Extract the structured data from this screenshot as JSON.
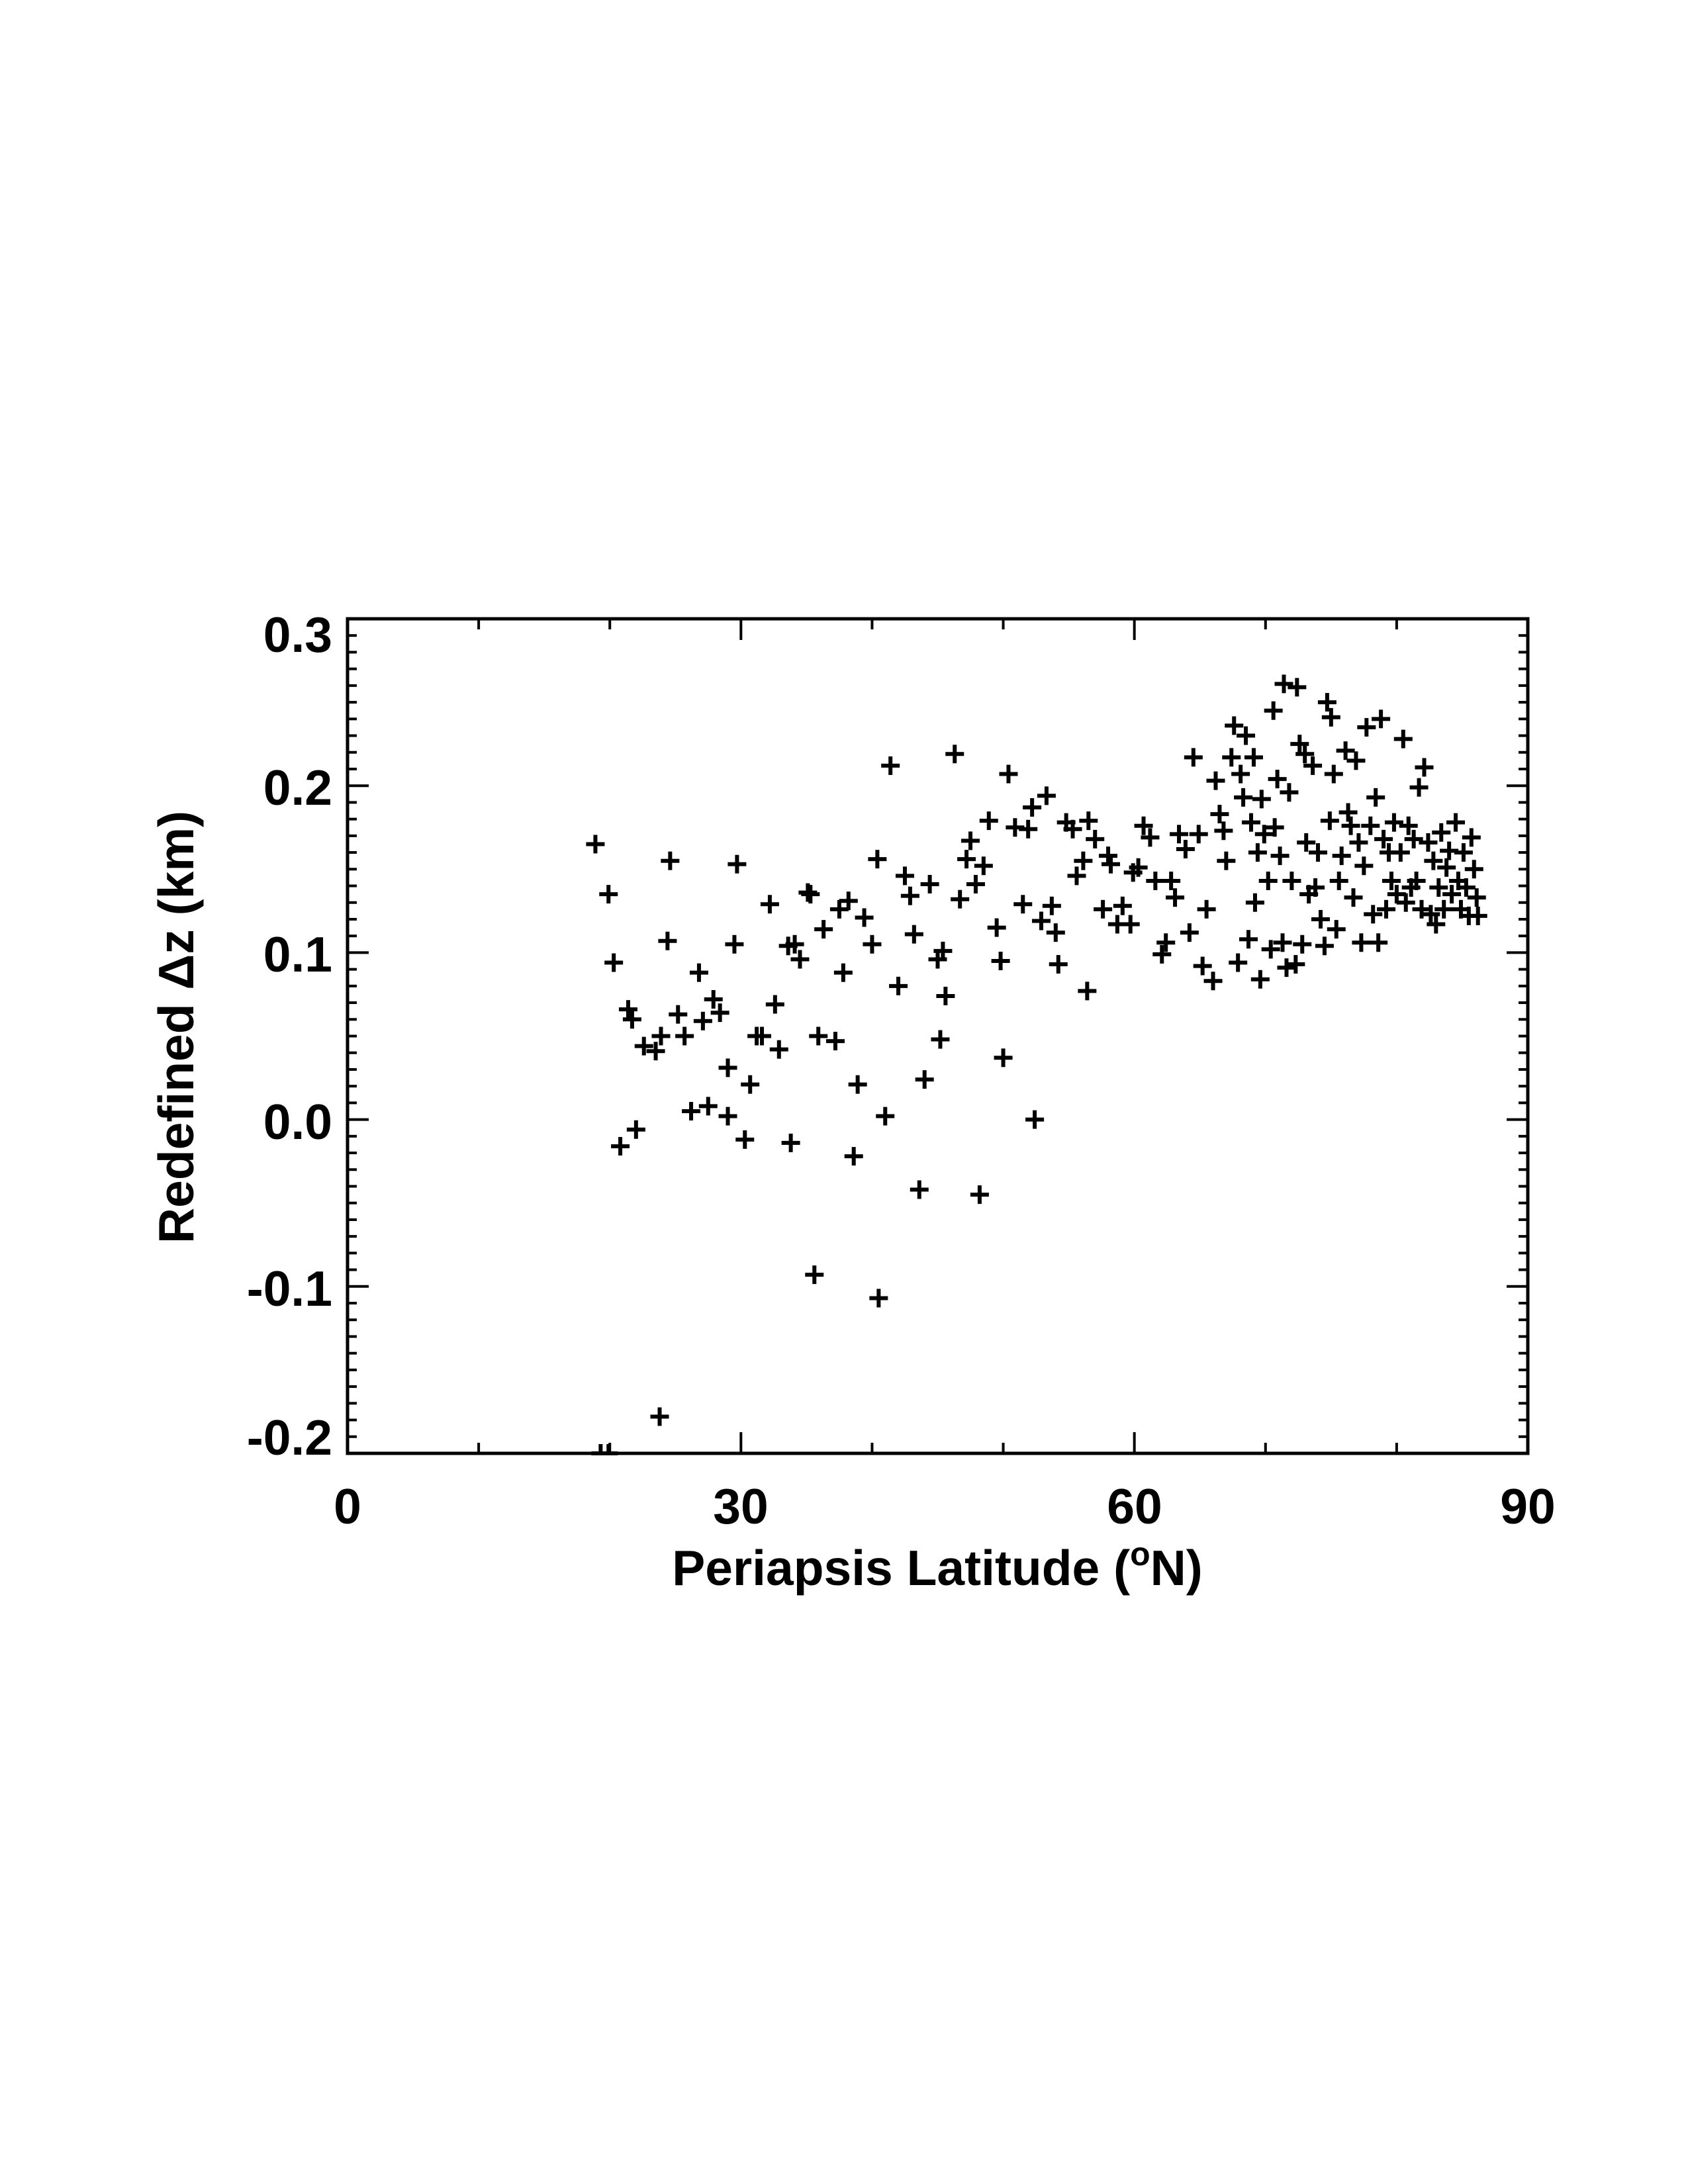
{
  "chart_data": {
    "type": "scatter",
    "title": "",
    "xlabel": "Periapsis Latitude (",
    "xlabel_sup": "o",
    "xlabel_end": "N)",
    "ylabel": "Redefined Δz (km)",
    "xlim": [
      0,
      90
    ],
    "ylim": [
      -0.2,
      0.3
    ],
    "x_ticks": [
      0,
      30,
      60,
      90
    ],
    "x_tick_labels": [
      "0",
      "30",
      "60",
      "90"
    ],
    "y_ticks": [
      -0.2,
      -0.1,
      0.0,
      0.1,
      0.2,
      0.3
    ],
    "y_tick_labels": [
      "-0.2",
      "-0.1",
      "0.0",
      "0.1",
      "0.2",
      "0.3"
    ],
    "grid": false,
    "marker": "plus",
    "color": "#000000",
    "points": [
      [
        18.9,
        0.165
      ],
      [
        19.9,
        0.135
      ],
      [
        20.3,
        0.094
      ],
      [
        20.8,
        -0.016
      ],
      [
        21.4,
        0.066
      ],
      [
        21.7,
        0.06
      ],
      [
        22.0,
        -0.006
      ],
      [
        22.6,
        0.044
      ],
      [
        23.5,
        0.041
      ],
      [
        23.8,
        -0.178
      ],
      [
        23.9,
        0.05
      ],
      [
        24.4,
        0.107
      ],
      [
        24.6,
        0.155
      ],
      [
        25.2,
        0.063
      ],
      [
        25.7,
        0.05
      ],
      [
        26.2,
        0.005
      ],
      [
        26.8,
        0.088
      ],
      [
        27.1,
        0.059
      ],
      [
        27.5,
        0.008
      ],
      [
        27.9,
        0.072
      ],
      [
        28.4,
        0.064
      ],
      [
        29.0,
        0.031
      ],
      [
        29.0,
        0.002
      ],
      [
        29.5,
        0.105
      ],
      [
        29.7,
        0.153
      ],
      [
        30.3,
        -0.012
      ],
      [
        30.7,
        0.021
      ],
      [
        31.2,
        0.05
      ],
      [
        31.6,
        0.05
      ],
      [
        32.2,
        0.129
      ],
      [
        32.6,
        0.069
      ],
      [
        32.9,
        0.042
      ],
      [
        33.6,
        0.104
      ],
      [
        33.8,
        -0.014
      ],
      [
        34.1,
        0.105
      ],
      [
        34.5,
        0.096
      ],
      [
        35.1,
        0.136
      ],
      [
        35.3,
        0.135
      ],
      [
        35.6,
        -0.093
      ],
      [
        35.9,
        0.05
      ],
      [
        36.3,
        0.114
      ],
      [
        37.2,
        0.047
      ],
      [
        37.5,
        0.126
      ],
      [
        37.8,
        0.088
      ],
      [
        38.2,
        0.131
      ],
      [
        38.6,
        -0.022
      ],
      [
        38.9,
        0.021
      ],
      [
        39.4,
        0.121
      ],
      [
        40.0,
        0.105
      ],
      [
        40.4,
        0.156
      ],
      [
        40.5,
        -0.107
      ],
      [
        41.0,
        0.002
      ],
      [
        41.4,
        0.212
      ],
      [
        42.0,
        0.08
      ],
      [
        42.5,
        0.146
      ],
      [
        42.9,
        0.134
      ],
      [
        43.2,
        0.111
      ],
      [
        43.6,
        -0.042
      ],
      [
        44.0,
        0.024
      ],
      [
        44.4,
        0.141
      ],
      [
        45.0,
        0.096
      ],
      [
        45.2,
        0.048
      ],
      [
        45.4,
        0.101
      ],
      [
        45.6,
        0.074
      ],
      [
        46.3,
        0.219
      ],
      [
        46.7,
        0.132
      ],
      [
        47.2,
        0.156
      ],
      [
        47.5,
        0.167
      ],
      [
        47.9,
        0.141
      ],
      [
        48.2,
        -0.045
      ],
      [
        48.5,
        0.152
      ],
      [
        48.9,
        0.179
      ],
      [
        49.5,
        0.115
      ],
      [
        49.8,
        0.095
      ],
      [
        50.0,
        0.037
      ],
      [
        50.4,
        0.207
      ],
      [
        50.9,
        0.175
      ],
      [
        51.5,
        0.129
      ],
      [
        51.9,
        0.174
      ],
      [
        52.2,
        0.187
      ],
      [
        52.4,
        0.0
      ],
      [
        52.9,
        0.119
      ],
      [
        53.3,
        0.194
      ],
      [
        53.7,
        0.128
      ],
      [
        54.0,
        0.112
      ],
      [
        54.2,
        0.093
      ],
      [
        54.8,
        0.178
      ],
      [
        55.3,
        0.174
      ],
      [
        55.6,
        0.146
      ],
      [
        56.1,
        0.155
      ],
      [
        56.4,
        0.077
      ],
      [
        56.5,
        0.179
      ],
      [
        57.0,
        0.168
      ],
      [
        57.6,
        0.126
      ],
      [
        58.0,
        0.158
      ],
      [
        58.2,
        0.153
      ],
      [
        58.7,
        0.117
      ],
      [
        59.1,
        0.128
      ],
      [
        59.7,
        0.117
      ],
      [
        59.9,
        0.148
      ],
      [
        60.3,
        0.151
      ],
      [
        60.7,
        0.176
      ],
      [
        61.2,
        0.169
      ],
      [
        61.6,
        0.143
      ],
      [
        62.1,
        0.099
      ],
      [
        62.4,
        0.106
      ],
      [
        62.8,
        0.143
      ],
      [
        63.1,
        0.133
      ],
      [
        63.4,
        0.171
      ],
      [
        63.9,
        0.162
      ],
      [
        64.2,
        0.112
      ],
      [
        64.5,
        0.217
      ],
      [
        64.9,
        0.171
      ],
      [
        65.2,
        0.092
      ],
      [
        65.5,
        0.126
      ],
      [
        66.0,
        0.083
      ],
      [
        66.2,
        0.203
      ],
      [
        66.5,
        0.183
      ],
      [
        66.8,
        0.173
      ],
      [
        67.0,
        0.155
      ],
      [
        67.4,
        0.217
      ],
      [
        67.6,
        0.236
      ],
      [
        67.9,
        0.094
      ],
      [
        68.1,
        0.207
      ],
      [
        68.3,
        0.193
      ],
      [
        68.5,
        0.23
      ],
      [
        68.7,
        0.108
      ],
      [
        68.9,
        0.178
      ],
      [
        69.1,
        0.217
      ],
      [
        69.2,
        0.13
      ],
      [
        69.4,
        0.16
      ],
      [
        69.6,
        0.084
      ],
      [
        69.7,
        0.192
      ],
      [
        69.9,
        0.171
      ],
      [
        70.2,
        0.143
      ],
      [
        70.4,
        0.102
      ],
      [
        70.6,
        0.245
      ],
      [
        70.7,
        0.175
      ],
      [
        70.9,
        0.204
      ],
      [
        71.1,
        0.158
      ],
      [
        71.3,
        0.106
      ],
      [
        71.4,
        0.261
      ],
      [
        71.6,
        0.091
      ],
      [
        71.8,
        0.196
      ],
      [
        72.0,
        0.143
      ],
      [
        72.3,
        0.093
      ],
      [
        72.4,
        0.259
      ],
      [
        72.6,
        0.225
      ],
      [
        72.8,
        0.105
      ],
      [
        73.0,
        0.219
      ],
      [
        73.1,
        0.166
      ],
      [
        73.3,
        0.135
      ],
      [
        73.6,
        0.212
      ],
      [
        73.8,
        0.139
      ],
      [
        74.0,
        0.16
      ],
      [
        74.2,
        0.12
      ],
      [
        74.5,
        0.104
      ],
      [
        74.7,
        0.25
      ],
      [
        74.9,
        0.179
      ],
      [
        75.0,
        0.241
      ],
      [
        75.2,
        0.207
      ],
      [
        75.4,
        0.114
      ],
      [
        75.6,
        0.143
      ],
      [
        75.8,
        0.158
      ],
      [
        76.1,
        0.221
      ],
      [
        76.3,
        0.184
      ],
      [
        76.5,
        0.176
      ],
      [
        76.7,
        0.133
      ],
      [
        76.9,
        0.215
      ],
      [
        77.1,
        0.166
      ],
      [
        77.3,
        0.106
      ],
      [
        77.5,
        0.152
      ],
      [
        77.7,
        0.235
      ],
      [
        78.0,
        0.176
      ],
      [
        78.2,
        0.123
      ],
      [
        78.4,
        0.193
      ],
      [
        78.6,
        0.106
      ],
      [
        78.8,
        0.24
      ],
      [
        79.0,
        0.168
      ],
      [
        79.2,
        0.126
      ],
      [
        79.4,
        0.16
      ],
      [
        79.6,
        0.143
      ],
      [
        79.8,
        0.178
      ],
      [
        80.0,
        0.135
      ],
      [
        80.3,
        0.16
      ],
      [
        80.5,
        0.228
      ],
      [
        80.7,
        0.13
      ],
      [
        80.9,
        0.176
      ],
      [
        81.1,
        0.139
      ],
      [
        81.3,
        0.168
      ],
      [
        81.5,
        0.143
      ],
      [
        81.7,
        0.199
      ],
      [
        81.9,
        0.126
      ],
      [
        82.1,
        0.211
      ],
      [
        82.4,
        0.166
      ],
      [
        82.6,
        0.123
      ],
      [
        82.8,
        0.155
      ],
      [
        83.0,
        0.117
      ],
      [
        83.2,
        0.139
      ],
      [
        83.4,
        0.172
      ],
      [
        83.6,
        0.126
      ],
      [
        83.8,
        0.151
      ],
      [
        84.0,
        0.161
      ],
      [
        84.2,
        0.135
      ],
      [
        84.5,
        0.178
      ],
      [
        84.7,
        0.143
      ],
      [
        84.9,
        0.126
      ],
      [
        85.1,
        0.16
      ],
      [
        85.3,
        0.139
      ],
      [
        85.5,
        0.122
      ],
      [
        85.7,
        0.169
      ],
      [
        85.9,
        0.15
      ],
      [
        86.1,
        0.133
      ],
      [
        86.2,
        0.122
      ],
      [
        19.3,
        -0.2
      ],
      [
        19.9,
        -0.2
      ]
    ]
  }
}
